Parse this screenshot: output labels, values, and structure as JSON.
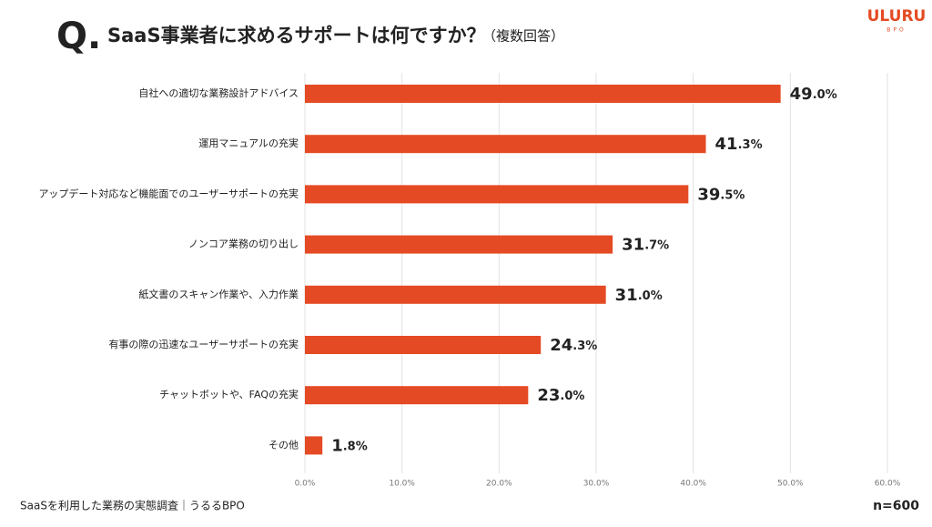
{
  "header": {
    "mark": "Q.",
    "title": "SaaS事業者に求めるサポートは何ですか？",
    "note": "（複数回答）"
  },
  "logo": {
    "name": "ULURU",
    "sub": "BPO"
  },
  "chart_data": {
    "type": "hbar",
    "color": "#e44a23",
    "grid": true,
    "categories": [
      "自社への適切な業務設計アドバイス",
      "運用マニュアルの充実",
      "アップデート対応など機能面でのユーザーサポートの充実",
      "ノンコア業務の切り出し",
      "紙文書のスキャン作業や、入力作業",
      "有事の際の迅速なユーザーサポートの充実",
      "チャットボットや、FAQの充実",
      "その他"
    ],
    "values": [
      49.0,
      41.3,
      39.5,
      31.7,
      31.0,
      24.3,
      23.0,
      1.8
    ],
    "value_labels": [
      "49.0%",
      "41.3%",
      "39.5%",
      "31.7%",
      "31.0%",
      "24.3%",
      "23.0%",
      "1.8%"
    ],
    "xlim": [
      0,
      60
    ],
    "xticks": [
      {
        "value": 0,
        "label": "0.0%"
      },
      {
        "value": 10,
        "label": "10.0%"
      },
      {
        "value": 20,
        "label": "20.0%"
      },
      {
        "value": 30,
        "label": "30.0%"
      },
      {
        "value": 40,
        "label": "40.0%"
      },
      {
        "value": 50,
        "label": "50.0%"
      },
      {
        "value": 60,
        "label": "60.0%"
      }
    ]
  },
  "footer": {
    "source": "SaaSを利用した業務の実態調査｜うるるBPO",
    "n": "n=600"
  }
}
